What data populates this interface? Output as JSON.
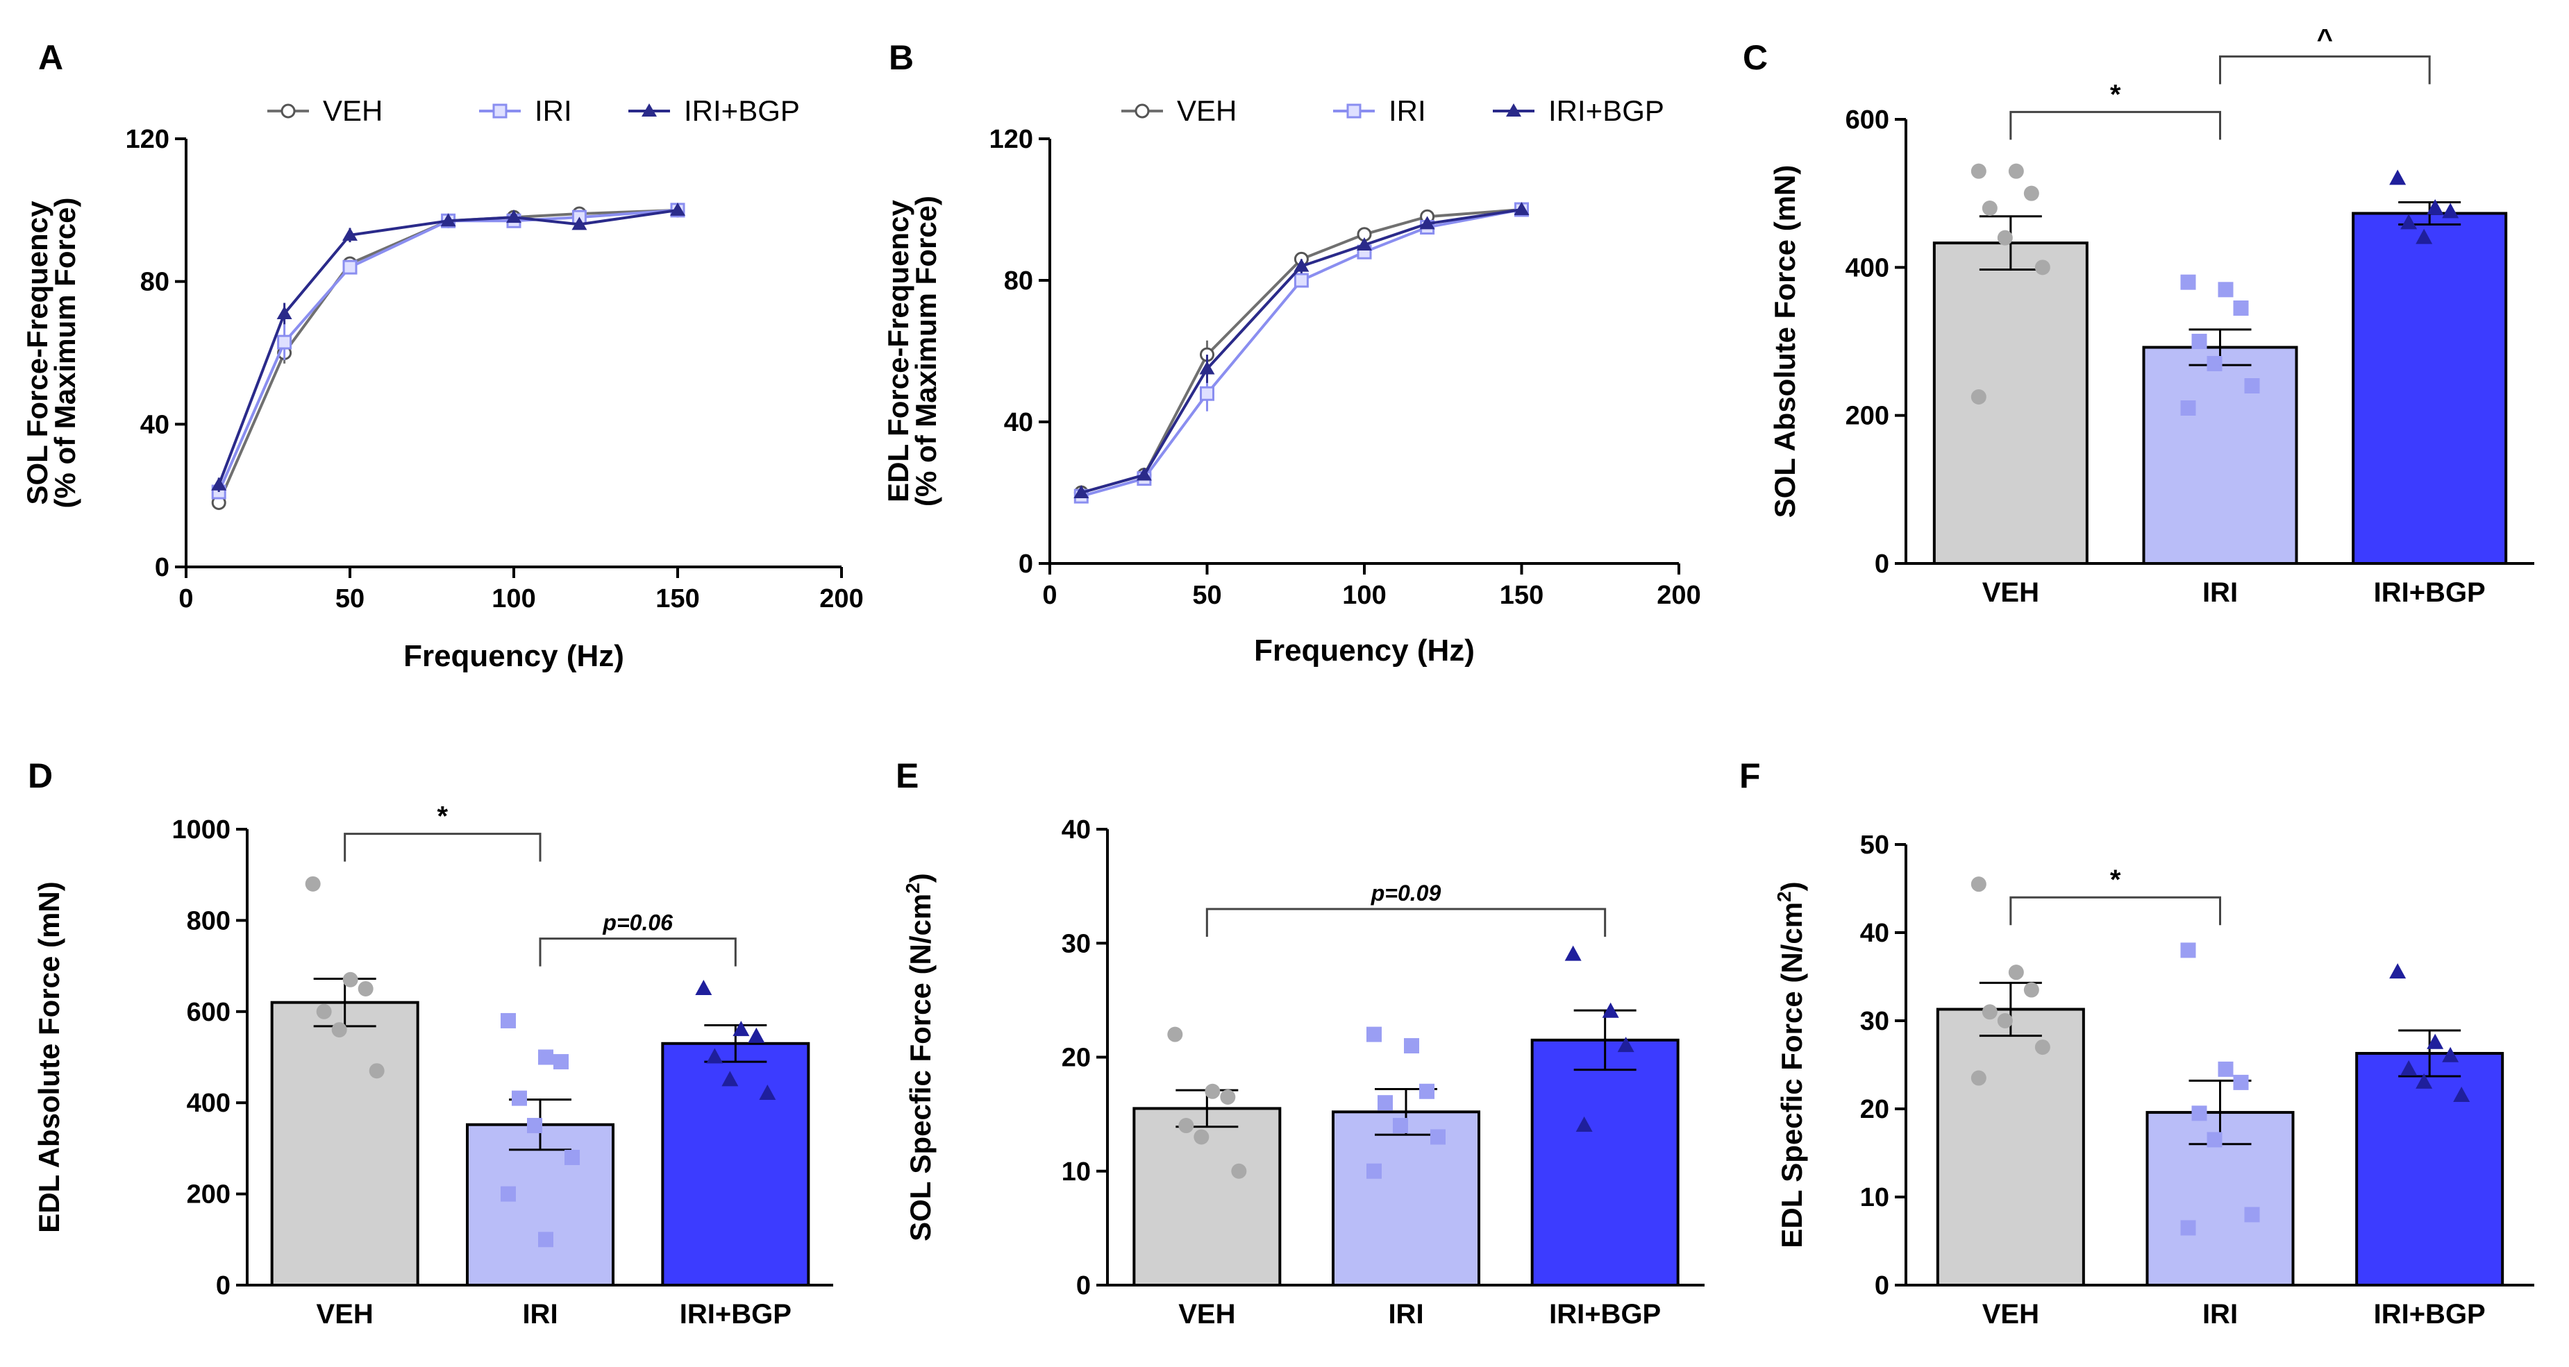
{
  "figure": {
    "series_colors": {
      "VEH": "#d0d0d0",
      "IRI": "#b9bdf8",
      "IRI+BGP": "#3c3cff",
      "VEH_point": "#a9a9a9",
      "IRI_point": "#9a9ef3",
      "IRI+BGP_point": "#1f1f9c",
      "IRI_line": "#8a8ef0",
      "IRI+BGP_line": "#2a2a8a",
      "VEH_line": "#707070"
    },
    "legend_entries": [
      "VEH",
      "IRI",
      "IRI+BGP"
    ]
  },
  "chart_data": [
    {
      "panel": "A",
      "type": "line",
      "title": "",
      "xlabel": "Frequency (Hz)",
      "ylabel_line1": "SOL Force-Frequency",
      "ylabel_line2": "(% of Maximum Force)",
      "xlim": [
        0,
        200
      ],
      "ylim": [
        0,
        120
      ],
      "xticks": [
        0,
        50,
        100,
        150,
        200
      ],
      "yticks": [
        0,
        40,
        80,
        120
      ],
      "x": [
        10,
        30,
        50,
        80,
        100,
        120,
        150
      ],
      "series": [
        {
          "name": "VEH",
          "values": [
            18,
            60,
            85,
            97,
            98,
            99,
            100
          ],
          "err": [
            1,
            3,
            2,
            1,
            1,
            1,
            0
          ]
        },
        {
          "name": "IRI",
          "values": [
            21,
            63,
            84,
            97,
            97,
            98,
            100
          ],
          "err": [
            1,
            5,
            2,
            2,
            1,
            1,
            0
          ]
        },
        {
          "name": "IRI+BGP",
          "values": [
            23,
            71,
            93,
            97,
            98,
            96,
            100
          ],
          "err": [
            2,
            3,
            2,
            1,
            1,
            1,
            0
          ]
        }
      ],
      "legend": "top"
    },
    {
      "panel": "B",
      "type": "line",
      "title": "",
      "xlabel": "Frequency (Hz)",
      "ylabel_line1": "EDL Force-Frequency",
      "ylabel_line2": "(% of Maximum Force)",
      "xlim": [
        0,
        200
      ],
      "ylim": [
        0,
        120
      ],
      "xticks": [
        0,
        50,
        100,
        150,
        200
      ],
      "yticks": [
        0,
        40,
        80,
        120
      ],
      "x": [
        10,
        30,
        50,
        80,
        100,
        120,
        150
      ],
      "series": [
        {
          "name": "VEH",
          "values": [
            20,
            25,
            59,
            86,
            93,
            98,
            100
          ],
          "err": [
            1,
            1,
            4,
            2,
            1,
            1,
            0
          ]
        },
        {
          "name": "IRI",
          "values": [
            19,
            24,
            48,
            80,
            88,
            95,
            100
          ],
          "err": [
            1,
            1,
            5,
            2,
            2,
            1,
            0
          ]
        },
        {
          "name": "IRI+BGP",
          "values": [
            20,
            25,
            55,
            84,
            90,
            96,
            100
          ],
          "err": [
            1,
            1,
            4,
            2,
            1,
            1,
            0
          ]
        }
      ],
      "legend": "top"
    },
    {
      "panel": "C",
      "type": "bar",
      "ylabel": "SOL Absolute Force (mN)",
      "sup": "",
      "ylim": [
        0,
        600
      ],
      "yticks": [
        0,
        200,
        400,
        600
      ],
      "categories": [
        "VEH",
        "IRI",
        "IRI+BGP"
      ],
      "values": [
        433,
        292,
        473
      ],
      "err": [
        36,
        24,
        15
      ],
      "points": [
        [
          530,
          530,
          500,
          480,
          440,
          400,
          225
        ],
        [
          380,
          370,
          345,
          300,
          270,
          240,
          210
        ],
        [
          520,
          480,
          475,
          460,
          440
        ]
      ],
      "brackets": [
        {
          "from": 0,
          "to": 1,
          "y": 610,
          "label": "*",
          "italic": false
        },
        {
          "from": 1,
          "to": 2,
          "y": 685,
          "label": "^",
          "italic": false
        }
      ]
    },
    {
      "panel": "D",
      "type": "bar",
      "ylabel": "EDL Absolute Force (mN)",
      "sup": "",
      "ylim": [
        0,
        1000
      ],
      "yticks": [
        0,
        200,
        400,
        600,
        800,
        1000
      ],
      "categories": [
        "VEH",
        "IRI",
        "IRI+BGP"
      ],
      "values": [
        620,
        352,
        530
      ],
      "err": [
        52,
        55,
        40
      ],
      "points": [
        [
          880,
          670,
          650,
          600,
          560,
          470
        ],
        [
          580,
          500,
          490,
          410,
          350,
          280,
          200,
          100
        ],
        [
          650,
          560,
          545,
          500,
          450,
          420
        ]
      ],
      "brackets": [
        {
          "from": 0,
          "to": 1,
          "y": 990,
          "label": "*",
          "italic": false
        },
        {
          "from": 1,
          "to": 2,
          "y": 760,
          "label": "p=0.06",
          "italic": true
        }
      ]
    },
    {
      "panel": "E",
      "type": "bar",
      "ylabel": "SOL Specfic Force (N/cm",
      "sup": "2",
      "ylim": [
        0,
        40
      ],
      "yticks": [
        0,
        10,
        20,
        30,
        40
      ],
      "categories": [
        "VEH",
        "IRI",
        "IRI+BGP"
      ],
      "values": [
        15.5,
        15.2,
        21.5
      ],
      "err": [
        1.6,
        2.0,
        2.6
      ],
      "points": [
        [
          22,
          17,
          16.5,
          14,
          13,
          10
        ],
        [
          22,
          21,
          17,
          16,
          14,
          13,
          10
        ],
        [
          29,
          24,
          21,
          14
        ]
      ],
      "brackets": [
        {
          "from": 0,
          "to": 2,
          "y": 33,
          "label": "p=0.09",
          "italic": true
        }
      ]
    },
    {
      "panel": "F",
      "type": "bar",
      "ylabel": "EDL Specfic Force (N/cm",
      "sup": "2",
      "ylim": [
        0,
        50
      ],
      "yticks": [
        0,
        10,
        20,
        30,
        40,
        50
      ],
      "categories": [
        "VEH",
        "IRI",
        "IRI+BGP"
      ],
      "values": [
        31.3,
        19.6,
        26.3
      ],
      "err": [
        3.0,
        3.6,
        2.6
      ],
      "points": [
        [
          45.5,
          35.5,
          33.5,
          31,
          30,
          27,
          23.5
        ],
        [
          38,
          24.5,
          23,
          19.5,
          16.5,
          8,
          6.5
        ],
        [
          35.5,
          27.5,
          26,
          24.5,
          23,
          21.5
        ]
      ],
      "brackets": [
        {
          "from": 0,
          "to": 1,
          "y": 44,
          "label": "*",
          "italic": false
        }
      ]
    }
  ]
}
